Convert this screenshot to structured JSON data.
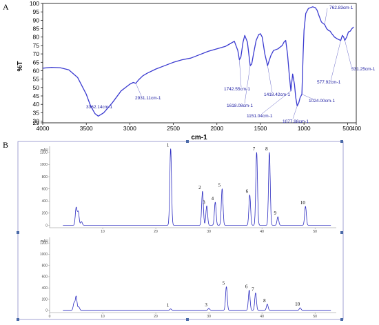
{
  "chart_data": [
    {
      "type": "line",
      "panel": "A",
      "xlabel": "cm-1",
      "ylabel": "%T",
      "xlim": [
        4000,
        400
      ],
      "ylim": [
        29,
        100
      ],
      "x_ticks": [
        "4000",
        "3500",
        "3000",
        "2500",
        "2000",
        "1500",
        "1000",
        "500",
        "400"
      ],
      "y_ticks": [
        "29",
        "30",
        "35",
        "40",
        "45",
        "50",
        "55",
        "60",
        "65",
        "70",
        "75",
        "80",
        "85",
        "90",
        "95",
        "100"
      ],
      "color": "#3a3ad0",
      "series": [
        {
          "x": [
            4000,
            3900,
            3800,
            3700,
            3600,
            3500,
            3450,
            3400,
            3362,
            3300,
            3200,
            3100,
            3000,
            2960,
            2931,
            2900,
            2850,
            2800,
            2700,
            2600,
            2500,
            2400,
            2300,
            2200,
            2100,
            2000,
            1900,
            1850,
            1800,
            1760,
            1742,
            1725,
            1700,
            1680,
            1650,
            1618,
            1600,
            1580,
            1550,
            1520,
            1500,
            1480,
            1450,
            1418,
            1400,
            1380,
            1350,
            1300,
            1250,
            1230,
            1210,
            1190,
            1170,
            1151,
            1130,
            1110,
            1095,
            1078,
            1060,
            1045,
            1024,
            1010,
            1000,
            980,
            950,
            900,
            870,
            850,
            830,
            800,
            780,
            763,
            740,
            720,
            700,
            680,
            650,
            620,
            600,
            578,
            560,
            545,
            531,
            510,
            490,
            470,
            450,
            430
          ],
          "y": [
            61.5,
            62,
            61.8,
            60.5,
            56,
            46,
            39,
            34.5,
            33,
            35,
            41,
            48,
            52,
            53,
            52.5,
            54.5,
            57,
            58.5,
            61,
            63,
            65,
            66.5,
            67.5,
            69.5,
            71.5,
            73,
            74.5,
            76,
            77.5,
            72,
            66.5,
            68,
            77,
            81,
            77,
            63,
            64,
            70,
            78,
            81.5,
            82,
            80,
            70,
            63,
            66,
            69,
            72,
            73,
            75,
            77,
            78,
            70,
            58,
            48,
            58,
            52,
            44,
            39,
            41,
            44,
            46,
            70,
            84,
            94,
            97,
            98,
            97.5,
            96,
            93,
            89,
            88,
            87.5,
            85,
            84,
            83.5,
            82,
            80,
            79,
            78.5,
            78,
            81,
            80,
            78,
            80,
            83,
            83.5,
            85,
            86
          ]
        }
      ],
      "annotations": [
        "762.83cm-1",
        "531.25cm-1",
        "577.92cm-1",
        "1024.00cm-1",
        "1742.55cm-1",
        "1618.08cm-1",
        "1418.42cm-1",
        "1151.04cm-1",
        "1077.98cm-1",
        "2931.11cm-1",
        "3362.14cm-1"
      ]
    },
    {
      "type": "line",
      "panel": "B",
      "subplot": "upper",
      "ylabel": "mAU",
      "xlim": [
        0,
        54
      ],
      "ylim": [
        -40,
        1300
      ],
      "x_ticks": [
        "10",
        "20",
        "30",
        "40",
        "50"
      ],
      "y_ticks": [
        "0",
        "200",
        "400",
        "600",
        "800",
        "1000",
        "1200"
      ],
      "color": "#2a2ac0",
      "peaks": [
        {
          "x": 5.0,
          "y": 290
        },
        {
          "x": 5.4,
          "y": 220
        },
        {
          "x": 6.0,
          "y": 60
        },
        {
          "x": 22.8,
          "y": 1260
        },
        {
          "x": 28.8,
          "y": 560
        },
        {
          "x": 29.6,
          "y": 320
        },
        {
          "x": 31.2,
          "y": 380
        },
        {
          "x": 32.5,
          "y": 600
        },
        {
          "x": 37.7,
          "y": 500
        },
        {
          "x": 39.0,
          "y": 1200
        },
        {
          "x": 41.4,
          "y": 1200
        },
        {
          "x": 43.0,
          "y": 140
        },
        {
          "x": 48.2,
          "y": 310
        }
      ],
      "peak_labels": [
        {
          "label": "1",
          "x": 22.8,
          "y": 1260
        },
        {
          "label": "2",
          "x": 28.8,
          "y": 560
        },
        {
          "label": "3",
          "x": 29.6,
          "y": 320
        },
        {
          "label": "4",
          "x": 31.2,
          "y": 380
        },
        {
          "label": "5",
          "x": 32.5,
          "y": 600
        },
        {
          "label": "6",
          "x": 37.7,
          "y": 500
        },
        {
          "label": "7",
          "x": 39.0,
          "y": 1200
        },
        {
          "label": "8",
          "x": 41.4,
          "y": 1200
        },
        {
          "label": "9",
          "x": 43.0,
          "y": 140
        },
        {
          "label": "10",
          "x": 48.2,
          "y": 310
        }
      ]
    },
    {
      "type": "line",
      "panel": "B",
      "subplot": "lower",
      "ylabel": "mAU",
      "xlim": [
        0,
        54
      ],
      "ylim": [
        -40,
        1300
      ],
      "x_ticks": [
        "0",
        "10",
        "20",
        "30",
        "40",
        "50"
      ],
      "y_ticks": [
        "0",
        "200",
        "400",
        "600",
        "800",
        "1000",
        "1200"
      ],
      "color": "#2a2ac0",
      "peaks": [
        {
          "x": 4.6,
          "y": 130
        },
        {
          "x": 5.0,
          "y": 250
        },
        {
          "x": 5.5,
          "y": 60
        },
        {
          "x": 22.8,
          "y": 25
        },
        {
          "x": 30.0,
          "y": 35
        },
        {
          "x": 33.3,
          "y": 420
        },
        {
          "x": 37.6,
          "y": 360
        },
        {
          "x": 38.8,
          "y": 310
        },
        {
          "x": 41.0,
          "y": 110
        },
        {
          "x": 47.2,
          "y": 45
        }
      ],
      "peak_labels": [
        {
          "label": "1",
          "x": 22.8,
          "y": 25
        },
        {
          "label": "3",
          "x": 30.0,
          "y": 35
        },
        {
          "label": "5",
          "x": 33.3,
          "y": 420
        },
        {
          "label": "6",
          "x": 37.6,
          "y": 360
        },
        {
          "label": "7",
          "x": 38.8,
          "y": 310
        },
        {
          "label": "8",
          "x": 41.0,
          "y": 110
        },
        {
          "label": "10",
          "x": 47.2,
          "y": 45
        }
      ]
    }
  ],
  "labels": {
    "panel_a": "A",
    "panel_b": "B"
  }
}
